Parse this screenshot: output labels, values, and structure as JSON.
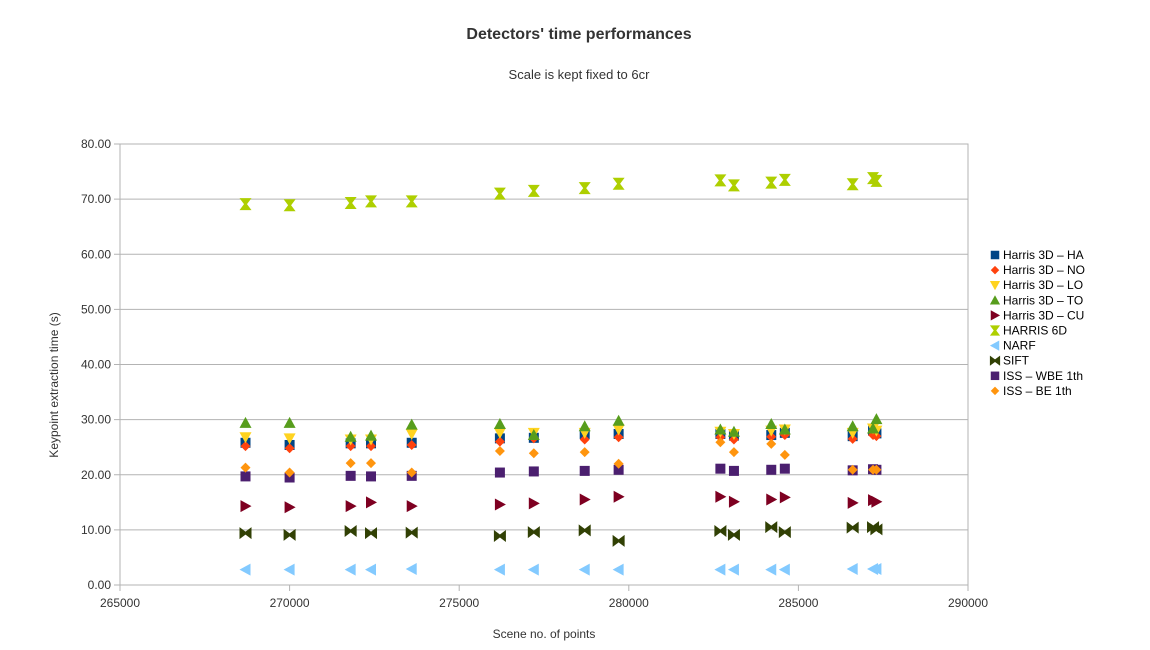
{
  "chart_data": {
    "type": "scatter",
    "title": "Detectors' time performances",
    "subtitle": "Scale is kept fixed to 6cr",
    "xlabel": "Scene no. of points",
    "ylabel": "Keypoint extraction time (s)",
    "xlim": [
      265000,
      290000
    ],
    "ylim": [
      0,
      80
    ],
    "x_ticks": [
      "265000",
      "270000",
      "275000",
      "280000",
      "285000",
      "290000"
    ],
    "y_ticks": [
      "0.00",
      "10.00",
      "20.00",
      "30.00",
      "40.00",
      "50.00",
      "60.00",
      "70.00",
      "80.00"
    ],
    "grid": "horizontal",
    "legend_position": "right",
    "x": [
      268700,
      270000,
      271800,
      272400,
      273600,
      276200,
      277200,
      278700,
      279700,
      282700,
      283100,
      284200,
      284600,
      286600,
      287200,
      287300
    ],
    "series": [
      {
        "name": "Harris 3D – HA",
        "color": "#004586",
        "marker": "square",
        "values": [
          25.8,
          25.4,
          25.7,
          25.7,
          25.8,
          26.6,
          26.7,
          27.4,
          27.4,
          27.4,
          27.1,
          27.2,
          27.6,
          27.0,
          28.0,
          27.5
        ]
      },
      {
        "name": "Harris 3D – NO",
        "color": "#ff420e",
        "marker": "diamond",
        "values": [
          25.2,
          24.8,
          25.2,
          25.2,
          25.4,
          26.0,
          26.6,
          26.4,
          26.8,
          26.8,
          26.4,
          26.9,
          27.2,
          26.5,
          27.2,
          27.0
        ]
      },
      {
        "name": "Harris 3D – LO",
        "color": "#ffd320",
        "marker": "triangle-down",
        "values": [
          26.8,
          26.6,
          26.4,
          26.4,
          27.4,
          27.6,
          27.6,
          27.6,
          28.2,
          27.8,
          27.4,
          28.0,
          28.2,
          27.6,
          28.4,
          28.0
        ]
      },
      {
        "name": "Harris 3D – TO",
        "color": "#579d1c",
        "marker": "triangle-up",
        "values": [
          29.4,
          29.4,
          26.9,
          27.1,
          29.1,
          29.2,
          27.2,
          28.8,
          29.8,
          28.2,
          27.8,
          29.2,
          28.2,
          28.8,
          28.4,
          30.1
        ]
      },
      {
        "name": "Harris 3D – CU",
        "color": "#7e0021",
        "marker": "triangle-right",
        "values": [
          14.3,
          14.1,
          14.3,
          15.0,
          14.3,
          14.6,
          14.8,
          15.5,
          16.0,
          16.0,
          15.1,
          15.5,
          15.9,
          14.9,
          15.4,
          15.1
        ]
      },
      {
        "name": "HARRIS 6D",
        "color": "#aecf00",
        "marker": "hourglass",
        "values": [
          69.1,
          68.9,
          69.3,
          69.6,
          69.6,
          71.0,
          71.5,
          72.0,
          72.8,
          73.4,
          72.5,
          73.0,
          73.5,
          72.7,
          73.8,
          73.3
        ]
      },
      {
        "name": "NARF",
        "color": "#83caff",
        "marker": "triangle-left",
        "values": [
          2.8,
          2.8,
          2.8,
          2.8,
          2.9,
          2.8,
          2.8,
          2.8,
          2.8,
          2.8,
          2.8,
          2.8,
          2.8,
          2.9,
          2.9,
          2.9
        ]
      },
      {
        "name": "SIFT",
        "color": "#314004",
        "marker": "bowtie",
        "values": [
          9.4,
          9.1,
          9.8,
          9.4,
          9.5,
          8.9,
          9.6,
          9.9,
          8.0,
          9.8,
          9.1,
          10.5,
          9.6,
          10.4,
          10.5,
          10.1
        ]
      },
      {
        "name": "ISS – WBE 1th",
        "color": "#4b1f6f",
        "marker": "square",
        "values": [
          19.7,
          19.5,
          19.8,
          19.7,
          19.8,
          20.4,
          20.6,
          20.7,
          20.9,
          21.1,
          20.7,
          20.9,
          21.1,
          20.8,
          21.0,
          20.9
        ]
      },
      {
        "name": "ISS – BE 1th",
        "color": "#ff950e",
        "marker": "diamond",
        "values": [
          21.3,
          20.4,
          22.1,
          22.1,
          20.4,
          24.3,
          23.9,
          24.1,
          22.0,
          25.9,
          24.1,
          25.6,
          23.6,
          20.9,
          20.9,
          20.9
        ]
      }
    ]
  }
}
